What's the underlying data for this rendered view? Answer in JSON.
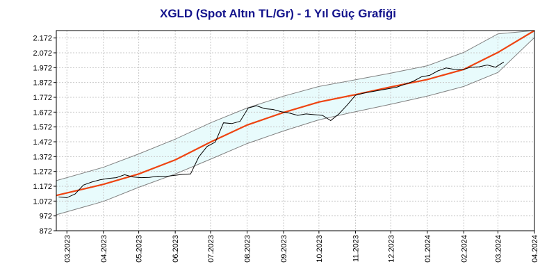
{
  "chart_data": {
    "type": "line",
    "title": "XGLD (Spot Altın TL/Gr) - 1 Yıl Güç Grafiği",
    "xlabel": "",
    "ylabel": "",
    "x_ticks": [
      "03.2023",
      "04.2023",
      "05.2023",
      "06.2023",
      "07.2023",
      "08.2023",
      "09.2023",
      "10.2023",
      "11.2023",
      "12.2023",
      "01.2024",
      "02.2024",
      "03.2024",
      "04.2024"
    ],
    "y_ticks": [
      "872",
      "972",
      "1.072",
      "1.172",
      "1.272",
      "1.372",
      "1.472",
      "1.572",
      "1.672",
      "1.772",
      "1.872",
      "1.972",
      "2.072",
      "2.172"
    ],
    "y_tick_values": [
      872,
      972,
      1072,
      1172,
      1272,
      1372,
      1472,
      1572,
      1672,
      1772,
      1872,
      1972,
      2072,
      2172
    ],
    "ylim": [
      872,
      2222
    ],
    "xlim": [
      "2023-02-20",
      "2024-04-01"
    ],
    "grid": true,
    "legend": "none",
    "colors": {
      "price": "#000000",
      "trend": "#ee4411",
      "band_fill": "#e8fbfc",
      "band_line": "#808080",
      "grid": "#c8c8c8",
      "title": "#14148c"
    },
    "series": [
      {
        "role": "price",
        "x": [
          "2023-02-22",
          "2023-03-01",
          "2023-03-08",
          "2023-03-15",
          "2023-03-22",
          "2023-03-29",
          "2023-04-05",
          "2023-04-12",
          "2023-04-19",
          "2023-04-26",
          "2023-05-03",
          "2023-05-10",
          "2023-05-17",
          "2023-05-24",
          "2023-05-31",
          "2023-06-07",
          "2023-06-14",
          "2023-06-21",
          "2023-06-28",
          "2023-07-05",
          "2023-07-12",
          "2023-07-19",
          "2023-07-26",
          "2023-08-02",
          "2023-08-09",
          "2023-08-16",
          "2023-08-23",
          "2023-08-30",
          "2023-09-06",
          "2023-09-13",
          "2023-09-20",
          "2023-09-27",
          "2023-10-04",
          "2023-10-11",
          "2023-10-18",
          "2023-10-25",
          "2023-11-01",
          "2023-11-08",
          "2023-11-15",
          "2023-11-22",
          "2023-11-29",
          "2023-12-06",
          "2023-12-13",
          "2023-12-20",
          "2023-12-27",
          "2024-01-03",
          "2024-01-10",
          "2024-01-17",
          "2024-01-24",
          "2024-01-31",
          "2024-02-07",
          "2024-02-14",
          "2024-02-21",
          "2024-02-28",
          "2024-03-06"
        ],
        "y": [
          1100,
          1095,
          1120,
          1180,
          1200,
          1215,
          1225,
          1230,
          1250,
          1235,
          1230,
          1232,
          1240,
          1238,
          1245,
          1252,
          1255,
          1370,
          1440,
          1470,
          1600,
          1595,
          1610,
          1700,
          1715,
          1695,
          1690,
          1675,
          1665,
          1650,
          1660,
          1655,
          1650,
          1615,
          1660,
          1720,
          1785,
          1800,
          1810,
          1820,
          1830,
          1840,
          1860,
          1880,
          1910,
          1920,
          1950,
          1970,
          1960,
          1958,
          1975,
          1978,
          1990,
          1975,
          2010
        ]
      },
      {
        "role": "trend",
        "x": [
          "2023-02-20",
          "2023-04-01",
          "2023-05-01",
          "2023-06-01",
          "2023-07-01",
          "2023-08-01",
          "2023-09-01",
          "2023-10-01",
          "2023-11-01",
          "2023-12-01",
          "2024-01-01",
          "2024-02-01",
          "2024-03-01",
          "2024-04-01"
        ],
        "y": [
          1110,
          1185,
          1255,
          1350,
          1470,
          1585,
          1670,
          1740,
          1790,
          1842,
          1892,
          1960,
          2075,
          2222
        ]
      },
      {
        "role": "band_upper",
        "x": [
          "2023-02-20",
          "2023-04-01",
          "2023-05-01",
          "2023-06-01",
          "2023-07-01",
          "2023-08-01",
          "2023-09-01",
          "2023-10-01",
          "2023-11-01",
          "2023-12-01",
          "2024-01-01",
          "2024-02-01",
          "2024-03-01",
          "2024-04-01"
        ],
        "y": [
          1210,
          1300,
          1390,
          1490,
          1600,
          1700,
          1780,
          1845,
          1890,
          1935,
          1985,
          2075,
          2200,
          2222
        ]
      },
      {
        "role": "band_lower",
        "x": [
          "2023-02-20",
          "2023-04-01",
          "2023-05-01",
          "2023-06-01",
          "2023-07-01",
          "2023-08-01",
          "2023-09-01",
          "2023-10-01",
          "2023-11-01",
          "2023-12-01",
          "2024-01-01",
          "2024-02-01",
          "2024-03-01",
          "2024-04-01"
        ],
        "y": [
          980,
          1070,
          1165,
          1255,
          1355,
          1460,
          1545,
          1620,
          1675,
          1725,
          1780,
          1845,
          1940,
          2175
        ]
      }
    ]
  }
}
